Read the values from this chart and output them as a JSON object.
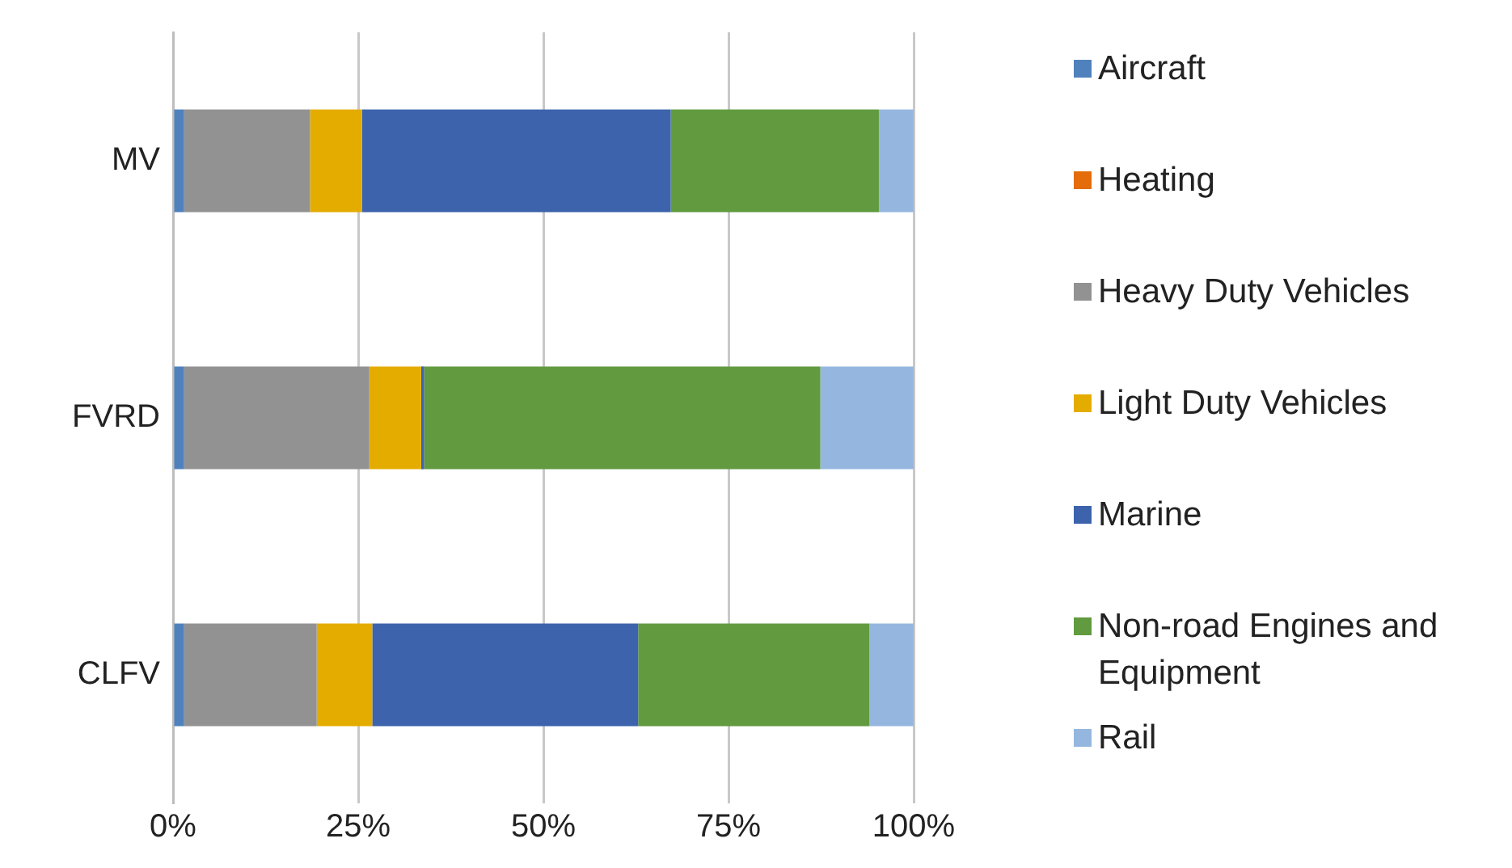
{
  "chart_data": {
    "type": "bar",
    "orientation": "horizontal",
    "stacked": true,
    "categories": [
      "MV",
      "FVRD",
      "CLFV"
    ],
    "series": [
      {
        "name": "Aircraft",
        "color": "#4f81bd",
        "values": [
          1.5,
          1.5,
          1.5
        ]
      },
      {
        "name": "Heating",
        "color": "#e46c0a",
        "values": [
          0,
          0,
          0
        ]
      },
      {
        "name": "Heavy Duty Vehicles",
        "color": "#929292",
        "values": [
          17.0,
          25.0,
          17.9
        ]
      },
      {
        "name": "Light Duty Vehicles",
        "color": "#e5ac00",
        "values": [
          7.0,
          7.0,
          7.5
        ]
      },
      {
        "name": "Marine",
        "color": "#3c63ac",
        "values": [
          41.7,
          0.4,
          35.9
        ]
      },
      {
        "name": "Non-road Engines and Equipment",
        "color": "#619a3f",
        "values": [
          28.1,
          53.5,
          31.2
        ]
      },
      {
        "name": "Rail",
        "color": "#95b7df",
        "values": [
          4.7,
          12.6,
          6.0
        ]
      }
    ],
    "xlim": [
      0,
      100
    ],
    "xticks": [
      {
        "value": 0,
        "label": "0%"
      },
      {
        "value": 25,
        "label": "25%"
      },
      {
        "value": 50,
        "label": "50%"
      },
      {
        "value": 75,
        "label": "75%"
      },
      {
        "value": 100,
        "label": "100%"
      }
    ],
    "grid": "x",
    "legend": "right"
  }
}
